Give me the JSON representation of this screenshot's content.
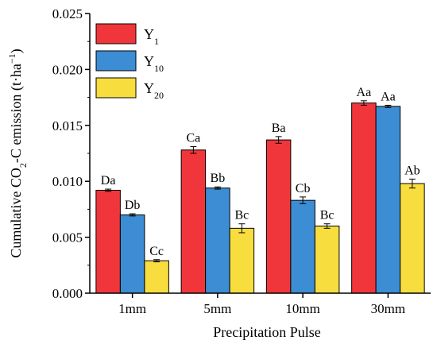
{
  "chart_data": {
    "type": "bar",
    "xlabel": "Precipitation Pulse",
    "ylabel_main": "Cumulative CO",
    "ylabel_sub": "2",
    "ylabel_rest": "-C emission (t·ha",
    "ylabel_sup": "−1",
    "ylabel_end": ")",
    "ylim": [
      0,
      0.025
    ],
    "yticks": [
      "0.000",
      "0.005",
      "0.010",
      "0.015",
      "0.020",
      "0.025"
    ],
    "ytick_values": [
      0,
      0.005,
      0.01,
      0.015,
      0.02,
      0.025
    ],
    "categories": [
      "1mm",
      "5mm",
      "10mm",
      "30mm"
    ],
    "legend_position": "top-left",
    "series": [
      {
        "name": "Y",
        "name_sub": "1",
        "color": "#F0363B",
        "values": [
          0.0092,
          0.0128,
          0.0137,
          0.017
        ],
        "errors": [
          0.0001,
          0.0003,
          0.0003,
          0.0002
        ],
        "labels": [
          "Da",
          "Ca",
          "Ba",
          "Aa"
        ]
      },
      {
        "name": "Y",
        "name_sub": "10",
        "color": "#3C8DD3",
        "values": [
          0.007,
          0.0094,
          0.0083,
          0.0167
        ],
        "errors": [
          0.0001,
          0.0001,
          0.0003,
          0.0001
        ],
        "labels": [
          "Db",
          "Bb",
          "Cb",
          "Aa"
        ]
      },
      {
        "name": "Y",
        "name_sub": "20",
        "color": "#F8DD3F",
        "values": [
          0.0029,
          0.0058,
          0.006,
          0.0098
        ],
        "errors": [
          0.0001,
          0.0004,
          0.0002,
          0.0004
        ],
        "labels": [
          "Cc",
          "Bc",
          "Bc",
          "Ab"
        ]
      }
    ]
  }
}
